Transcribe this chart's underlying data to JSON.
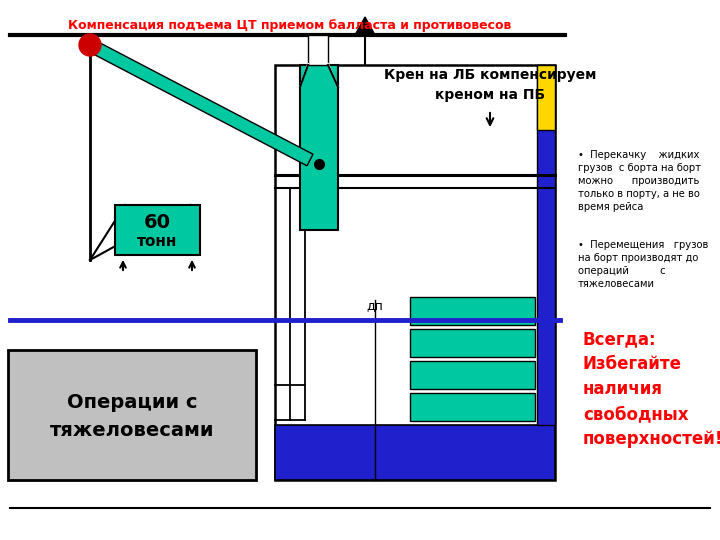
{
  "title_text": "Компенсация подъема ЦТ приемом балласта и противовесов",
  "title_color": "red",
  "bg_color": "white",
  "crane_ball_color": "#CC0000",
  "crane_beam_color": "#00C8A0",
  "load_box_color": "#00C8A0",
  "base_box_color": "#C0C0C0",
  "ship_teal": "#00C8A0",
  "ship_blue": "#2020CC",
  "ship_yellow": "#FFD700",
  "blue_line_color": "#2020CC",
  "heading_text": "Крен на ЛБ компенсируем\nкреном на ПБ",
  "bullet1_text": "Перекачку    жидких\nгрузов  с борта на борт\nможно      производить\nтолько в порту, а не во\nвремя рейса",
  "bullet2_text": "Перемещения   грузов\nна борт производят до\nопераций          с\nтяжеловесами",
  "red_warn": "Всегда:\nИзбегайте\nналичия\nсвободных\nповерхностей!",
  "dp_label": "дп",
  "load_line1": "60",
  "load_line2": "тонн",
  "base_line1": "Операции с",
  "base_line2": "тяжеловесами"
}
